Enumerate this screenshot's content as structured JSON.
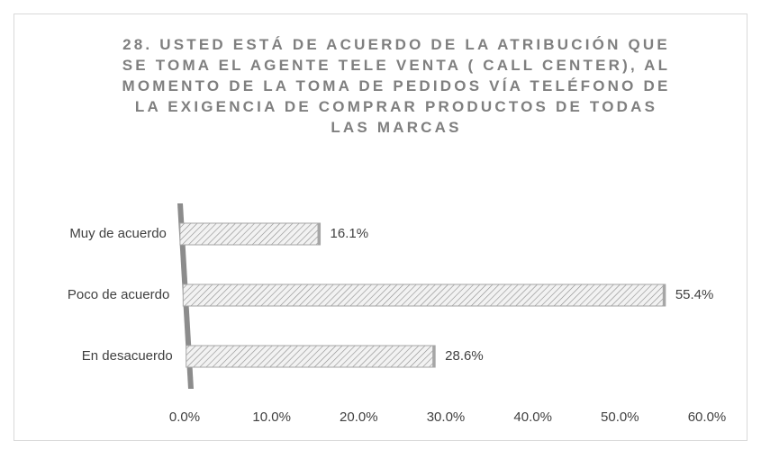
{
  "chart_data": {
    "type": "bar",
    "orientation": "horizontal",
    "title": "28. USTED ESTÁ DE ACUERDO DE LA ATRIBUCIÓN QUE SE TOMA EL AGENTE TELE VENTA ( CALL CENTER), AL MOMENTO DE LA TOMA DE PEDIDOS VÍA TELÉFONO DE LA EXIGENCIA DE COMPRAR PRODUCTOS DE TODAS LAS MARCAS",
    "categories": [
      "Muy de acuerdo",
      "Poco de acuerdo",
      "En desacuerdo"
    ],
    "values": [
      16.1,
      55.4,
      28.6
    ],
    "value_labels": [
      "16.1%",
      "55.4%",
      "28.6%"
    ],
    "color": "#a6a6a6",
    "xlim": [
      0,
      60
    ],
    "xticks": [
      {
        "value": 0,
        "label": "0.0%"
      },
      {
        "value": 10,
        "label": "10.0%"
      },
      {
        "value": 20,
        "label": "20.0%"
      },
      {
        "value": 30,
        "label": "30.0%"
      },
      {
        "value": 40,
        "label": "40.0%"
      },
      {
        "value": 50,
        "label": "50.0%"
      },
      {
        "value": 60,
        "label": "60.0%"
      }
    ],
    "grid": false
  }
}
